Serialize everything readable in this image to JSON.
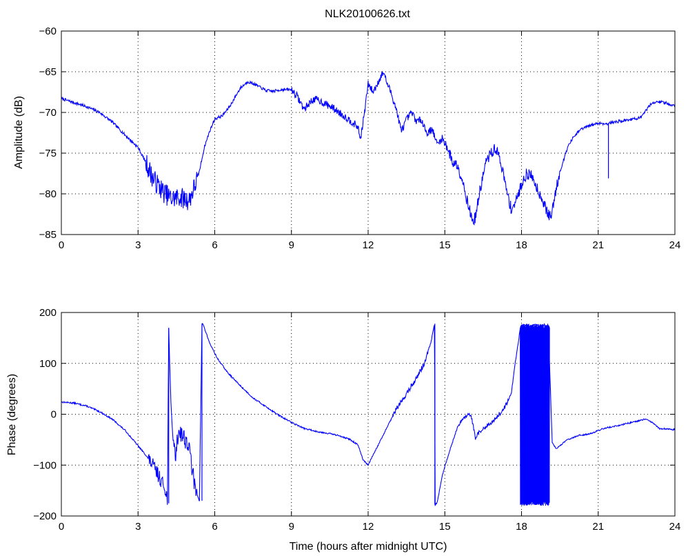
{
  "title": "NLK20100626.txt",
  "colors": {
    "series": "#0000ff",
    "axes": "#000000",
    "grid": "#000000",
    "background": "#ffffff"
  },
  "chart_data": [
    {
      "type": "line",
      "title": "NLK20100626.txt",
      "xlabel": "",
      "ylabel": "Amplitude (dB)",
      "xlim": [
        0,
        24
      ],
      "ylim": [
        -85,
        -60
      ],
      "xticks": [
        0,
        3,
        6,
        9,
        12,
        15,
        18,
        21,
        24
      ],
      "xtick_labels": [
        "0",
        "3",
        "6",
        "9",
        "12",
        "15",
        "18",
        "21",
        "24"
      ],
      "yticks": [
        -60,
        -65,
        -70,
        -75,
        -80,
        -85
      ],
      "ytick_labels": [
        "−60",
        "−65",
        "−70",
        "−75",
        "−80",
        "−85"
      ],
      "grid": true,
      "series": [
        {
          "x": [
            0,
            0.5,
            1,
            1.5,
            2,
            2.5,
            3,
            3.3,
            3.6,
            4,
            4.3,
            4.6,
            5,
            5.2,
            5.4,
            5.6,
            5.8,
            6,
            6.3,
            6.6,
            7,
            7.3,
            7.6,
            8,
            8.3,
            8.6,
            9,
            9.2,
            9.5,
            9.8,
            10,
            10.3,
            10.6,
            11,
            11.3,
            11.6,
            11.7,
            11.85,
            12,
            12.2,
            12.4,
            12.6,
            12.75,
            12.9,
            13.1,
            13.3,
            13.5,
            13.7,
            13.9,
            14.1,
            14.3,
            14.5,
            14.7,
            14.9,
            15.1,
            15.3,
            15.5,
            15.7,
            15.9,
            16.1,
            16.2,
            16.4,
            16.6,
            16.8,
            17,
            17.2,
            17.4,
            17.6,
            17.8,
            18,
            18.2,
            18.4,
            18.6,
            18.8,
            19,
            19.15,
            19.3,
            19.5,
            19.8,
            20,
            20.3,
            20.6,
            21,
            21.3,
            21.6,
            22,
            22.4,
            22.7,
            22.9,
            23.1,
            23.5,
            24
          ],
          "y": [
            -68.3,
            -68.8,
            -69.3,
            -70,
            -71.2,
            -72.8,
            -74.3,
            -76.1,
            -78.2,
            -79.8,
            -80.6,
            -80.4,
            -80.8,
            -79.2,
            -77.2,
            -74.2,
            -72.3,
            -70.8,
            -70.4,
            -69.2,
            -67,
            -66.2,
            -66.6,
            -67.3,
            -67.4,
            -67.2,
            -67.2,
            -67.9,
            -69.6,
            -68.5,
            -68.4,
            -68.9,
            -69.4,
            -70.3,
            -71,
            -71.8,
            -73.3,
            -70.2,
            -66.5,
            -67.5,
            -66.2,
            -65,
            -66.5,
            -67.6,
            -69.6,
            -72.3,
            -70.9,
            -70,
            -71.1,
            -70.9,
            -72.6,
            -72,
            -73.9,
            -73.2,
            -74.3,
            -76.1,
            -76.5,
            -78.4,
            -81.2,
            -83.5,
            -82.8,
            -79.2,
            -76.2,
            -75,
            -74.4,
            -76.2,
            -79.4,
            -81.9,
            -80.8,
            -78.8,
            -77.5,
            -77.8,
            -79.2,
            -80.6,
            -82.2,
            -83,
            -80.2,
            -77.3,
            -74.3,
            -73.2,
            -72.1,
            -71.7,
            -71.3,
            -71.4,
            -71.2,
            -71,
            -70.8,
            -70.6,
            -69.6,
            -68.8,
            -68.7,
            -69.2
          ]
        }
      ],
      "annotations": [
        {
          "note": "narrow spike near 21.4 h",
          "x": 21.4,
          "y_from": -71.3,
          "y_to": -78.1
        }
      ]
    },
    {
      "type": "line",
      "title": "",
      "xlabel": "Time (hours after midnight UTC)",
      "ylabel": "Phase (degrees)",
      "xlim": [
        0,
        24
      ],
      "ylim": [
        -200,
        200
      ],
      "xticks": [
        0,
        3,
        6,
        9,
        12,
        15,
        18,
        21,
        24
      ],
      "xtick_labels": [
        "0",
        "3",
        "6",
        "9",
        "12",
        "15",
        "18",
        "21",
        "24"
      ],
      "yticks": [
        200,
        100,
        0,
        -100,
        -200
      ],
      "ytick_labels": [
        "200",
        "100",
        "0",
        "−100",
        "−200"
      ],
      "grid": true,
      "series": [
        {
          "x": [
            0,
            0.5,
            1,
            1.5,
            2,
            2.5,
            3,
            3.3,
            3.6,
            3.9,
            4.1,
            4.15,
            4.2,
            4.25,
            4.3,
            4.45,
            4.6,
            4.8,
            4.95,
            5.05,
            5.2,
            5.4,
            5.5,
            5.55,
            5.8,
            6.1,
            6.5,
            7,
            7.5,
            8,
            8.5,
            9,
            9.5,
            10,
            10.5,
            11,
            11.3,
            11.6,
            11.8,
            12,
            12.3,
            12.7,
            13.1,
            13.5,
            13.9,
            14.2,
            14.45,
            14.6,
            14.62,
            14.7,
            14.9,
            15.2,
            15.5,
            15.8,
            16,
            16.1,
            16.2,
            16.3,
            16.6,
            17,
            17.3,
            17.6,
            17.75,
            17.9,
            17.95,
            18.1,
            18.3,
            18.5,
            18.7,
            18.9,
            19.05,
            19.2,
            19.35,
            19.5,
            19.8,
            20.2,
            20.7,
            21.2,
            21.8,
            22.4,
            22.8,
            23,
            23.4,
            24
          ],
          "y": [
            24,
            22,
            16,
            5,
            -10,
            -32,
            -62,
            -80,
            -102,
            -130,
            -150,
            -175,
            170,
            80,
            0,
            -85,
            -30,
            -45,
            -60,
            -80,
            -140,
            -170,
            178,
            176,
            140,
            110,
            82,
            56,
            32,
            15,
            -2,
            -16,
            -28,
            -34,
            -38,
            -44,
            -50,
            -60,
            -90,
            -100,
            -70,
            -30,
            10,
            40,
            72,
            100,
            140,
            178,
            -178,
            -175,
            -120,
            -70,
            -25,
            -5,
            0,
            -20,
            -50,
            -38,
            -25,
            -8,
            10,
            40,
            100,
            150,
            170,
            176,
            172,
            176,
            174,
            176,
            170,
            -55,
            -68,
            -62,
            -50,
            -42,
            -38,
            -28,
            -22,
            -15,
            -10,
            -12,
            -28,
            -30
          ]
        }
      ],
      "annotations": [
        {
          "note": "dense phase wrapping between +180 and -180 from about 17.95 h to 19.1 h"
        }
      ]
    }
  ]
}
